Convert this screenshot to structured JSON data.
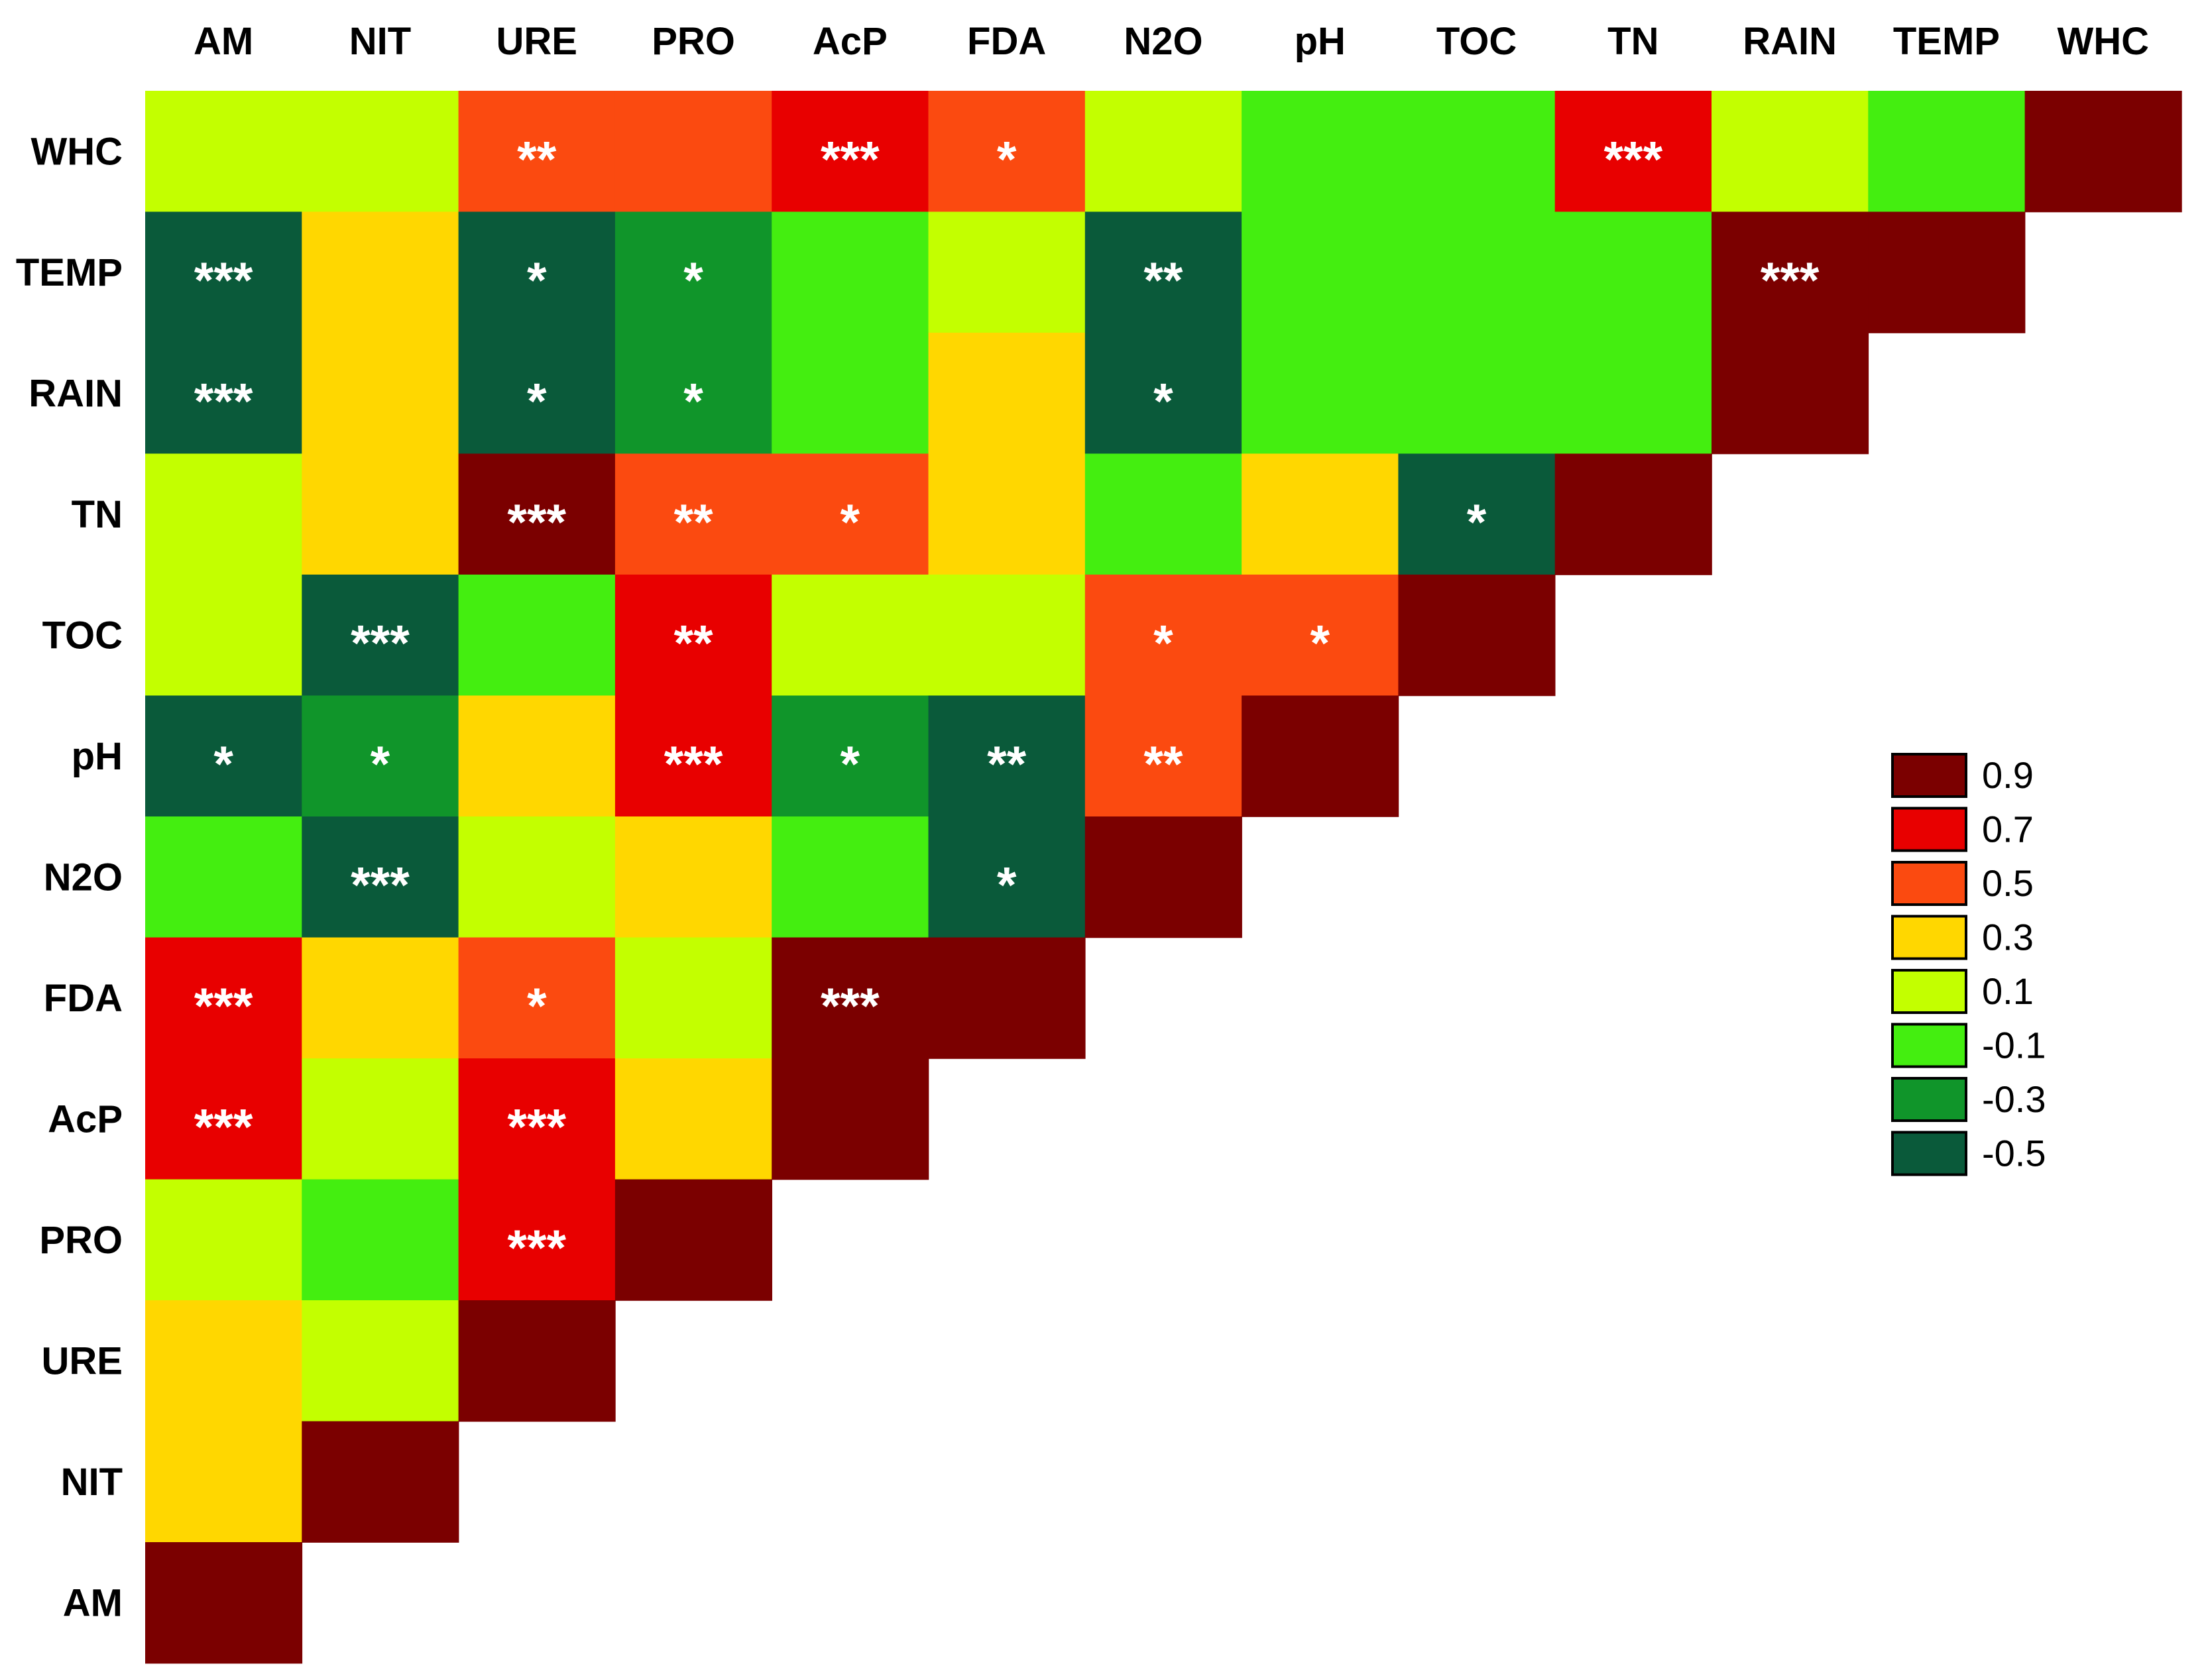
{
  "chart_data": {
    "type": "heatmap",
    "title": "",
    "columns": [
      "AM",
      "NIT",
      "URE",
      "PRO",
      "AcP",
      "FDA",
      "N2O",
      "pH",
      "TOC",
      "TN",
      "RAIN",
      "TEMP",
      "WHC"
    ],
    "rows": [
      "WHC",
      "TEMP",
      "RAIN",
      "TN",
      "TOC",
      "pH",
      "N2O",
      "FDA",
      "AcP",
      "PRO",
      "URE",
      "NIT",
      "AM"
    ],
    "values": [
      [
        0.1,
        0.1,
        0.5,
        0.4,
        0.7,
        0.5,
        0.1,
        -0.1,
        -0.1,
        0.7,
        0.1,
        -0.1,
        0.9
      ],
      [
        -0.5,
        0.3,
        -0.4,
        -0.3,
        -0.1,
        0.1,
        -0.4,
        -0.1,
        -0.1,
        -0.1,
        0.9,
        0.9,
        null
      ],
      [
        -0.5,
        0.3,
        -0.4,
        -0.3,
        -0.1,
        0.2,
        -0.4,
        -0.1,
        -0.1,
        -0.1,
        0.9,
        null,
        null
      ],
      [
        0.1,
        0.3,
        0.9,
        0.5,
        0.4,
        0.3,
        -0.1,
        0.2,
        -0.4,
        0.9,
        null,
        null,
        null
      ],
      [
        0.1,
        -0.5,
        -0.1,
        0.7,
        0.1,
        0.1,
        0.4,
        0.5,
        0.9,
        null,
        null,
        null,
        null
      ],
      [
        -0.4,
        -0.3,
        0.3,
        0.7,
        -0.3,
        -0.5,
        0.5,
        0.9,
        null,
        null,
        null,
        null,
        null
      ],
      [
        -0.1,
        -0.5,
        0.1,
        0.3,
        -0.1,
        -0.4,
        0.9,
        null,
        null,
        null,
        null,
        null,
        null
      ],
      [
        0.7,
        0.2,
        0.4,
        0.1,
        0.9,
        0.9,
        null,
        null,
        null,
        null,
        null,
        null,
        null
      ],
      [
        0.7,
        0.1,
        0.7,
        0.2,
        0.9,
        null,
        null,
        null,
        null,
        null,
        null,
        null,
        null
      ],
      [
        0.1,
        -0.1,
        0.7,
        0.9,
        null,
        null,
        null,
        null,
        null,
        null,
        null,
        null,
        null
      ],
      [
        0.3,
        0.1,
        0.9,
        null,
        null,
        null,
        null,
        null,
        null,
        null,
        null,
        null,
        null
      ],
      [
        0.3,
        0.9,
        null,
        null,
        null,
        null,
        null,
        null,
        null,
        null,
        null,
        null,
        null
      ],
      [
        0.9,
        null,
        null,
        null,
        null,
        null,
        null,
        null,
        null,
        null,
        null,
        null,
        null
      ]
    ],
    "significance": [
      [
        "",
        "",
        "**",
        "",
        "***",
        "*",
        "",
        "",
        "",
        "***",
        "",
        "",
        ""
      ],
      [
        "***",
        "",
        "*",
        "*",
        "",
        "",
        "**",
        "",
        "",
        "",
        "***",
        "",
        ""
      ],
      [
        "***",
        "",
        "*",
        "*",
        "",
        "",
        "*",
        "",
        "",
        "",
        "",
        "",
        ""
      ],
      [
        "",
        "",
        "***",
        "**",
        "*",
        "",
        "",
        "",
        "*",
        "",
        "",
        "",
        ""
      ],
      [
        "",
        "***",
        "",
        "**",
        "",
        "",
        "*",
        "*",
        "",
        "",
        "",
        "",
        ""
      ],
      [
        "*",
        "*",
        "",
        "***",
        "*",
        "**",
        "**",
        "",
        "",
        "",
        "",
        "",
        ""
      ],
      [
        "",
        "***",
        "",
        "",
        "",
        "*",
        "",
        "",
        "",
        "",
        "",
        "",
        ""
      ],
      [
        "***",
        "",
        "*",
        "",
        "***",
        "",
        "",
        "",
        "",
        "",
        "",
        "",
        ""
      ],
      [
        "***",
        "",
        "***",
        "",
        "",
        "",
        "",
        "",
        "",
        "",
        "",
        "",
        ""
      ],
      [
        "",
        "",
        "***",
        "",
        "",
        "",
        "",
        "",
        "",
        "",
        "",
        "",
        ""
      ],
      [
        "",
        "",
        "",
        "",
        "",
        "",
        "",
        "",
        "",
        "",
        "",
        "",
        ""
      ],
      [
        "",
        "",
        "",
        "",
        "",
        "",
        "",
        "",
        "",
        "",
        "",
        "",
        ""
      ],
      [
        "",
        "",
        "",
        "",
        "",
        "",
        "",
        "",
        "",
        "",
        "",
        "",
        ""
      ]
    ],
    "legend": {
      "placement": "right",
      "entries": [
        {
          "label": "0.9",
          "value": 0.9,
          "color": "#7b0000"
        },
        {
          "label": "0.7",
          "value": 0.7,
          "color": "#e80000"
        },
        {
          "label": "0.5",
          "value": 0.5,
          "color": "#fb4a10"
        },
        {
          "label": "0.3",
          "value": 0.3,
          "color": "#ffd700"
        },
        {
          "label": "0.1",
          "value": 0.1,
          "color": "#c3ff00"
        },
        {
          "label": "-0.1",
          "value": -0.1,
          "color": "#44ee10"
        },
        {
          "label": "-0.3",
          "value": -0.3,
          "color": "#10952a"
        },
        {
          "label": "-0.5",
          "value": -0.5,
          "color": "#0a5a3a"
        }
      ]
    },
    "grid": false
  }
}
